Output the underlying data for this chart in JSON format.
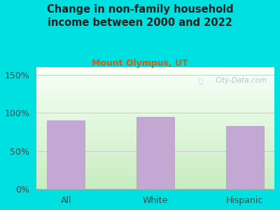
{
  "title": "Change in non-family household\nincome between 2000 and 2022",
  "subtitle": "Mount Olympus, UT",
  "categories": [
    "All",
    "White",
    "Hispanic"
  ],
  "values": [
    90,
    95,
    83
  ],
  "bar_color": "#C4A8D4",
  "bar_edge_color": "#B898C8",
  "ylim": [
    0,
    160
  ],
  "yticks": [
    0,
    50,
    100,
    150
  ],
  "ytick_labels": [
    "0%",
    "50%",
    "100%",
    "150%"
  ],
  "bg_outer": "#00E0E0",
  "grad_bottom": "#c8ecc0",
  "grad_top": "#f8fff8",
  "title_color": "#222222",
  "subtitle_color": "#CC6010",
  "title_fontsize": 10.5,
  "subtitle_fontsize": 9,
  "watermark": "City-Data.com",
  "grid_color": "#cccccc",
  "tick_label_color": "#444444"
}
